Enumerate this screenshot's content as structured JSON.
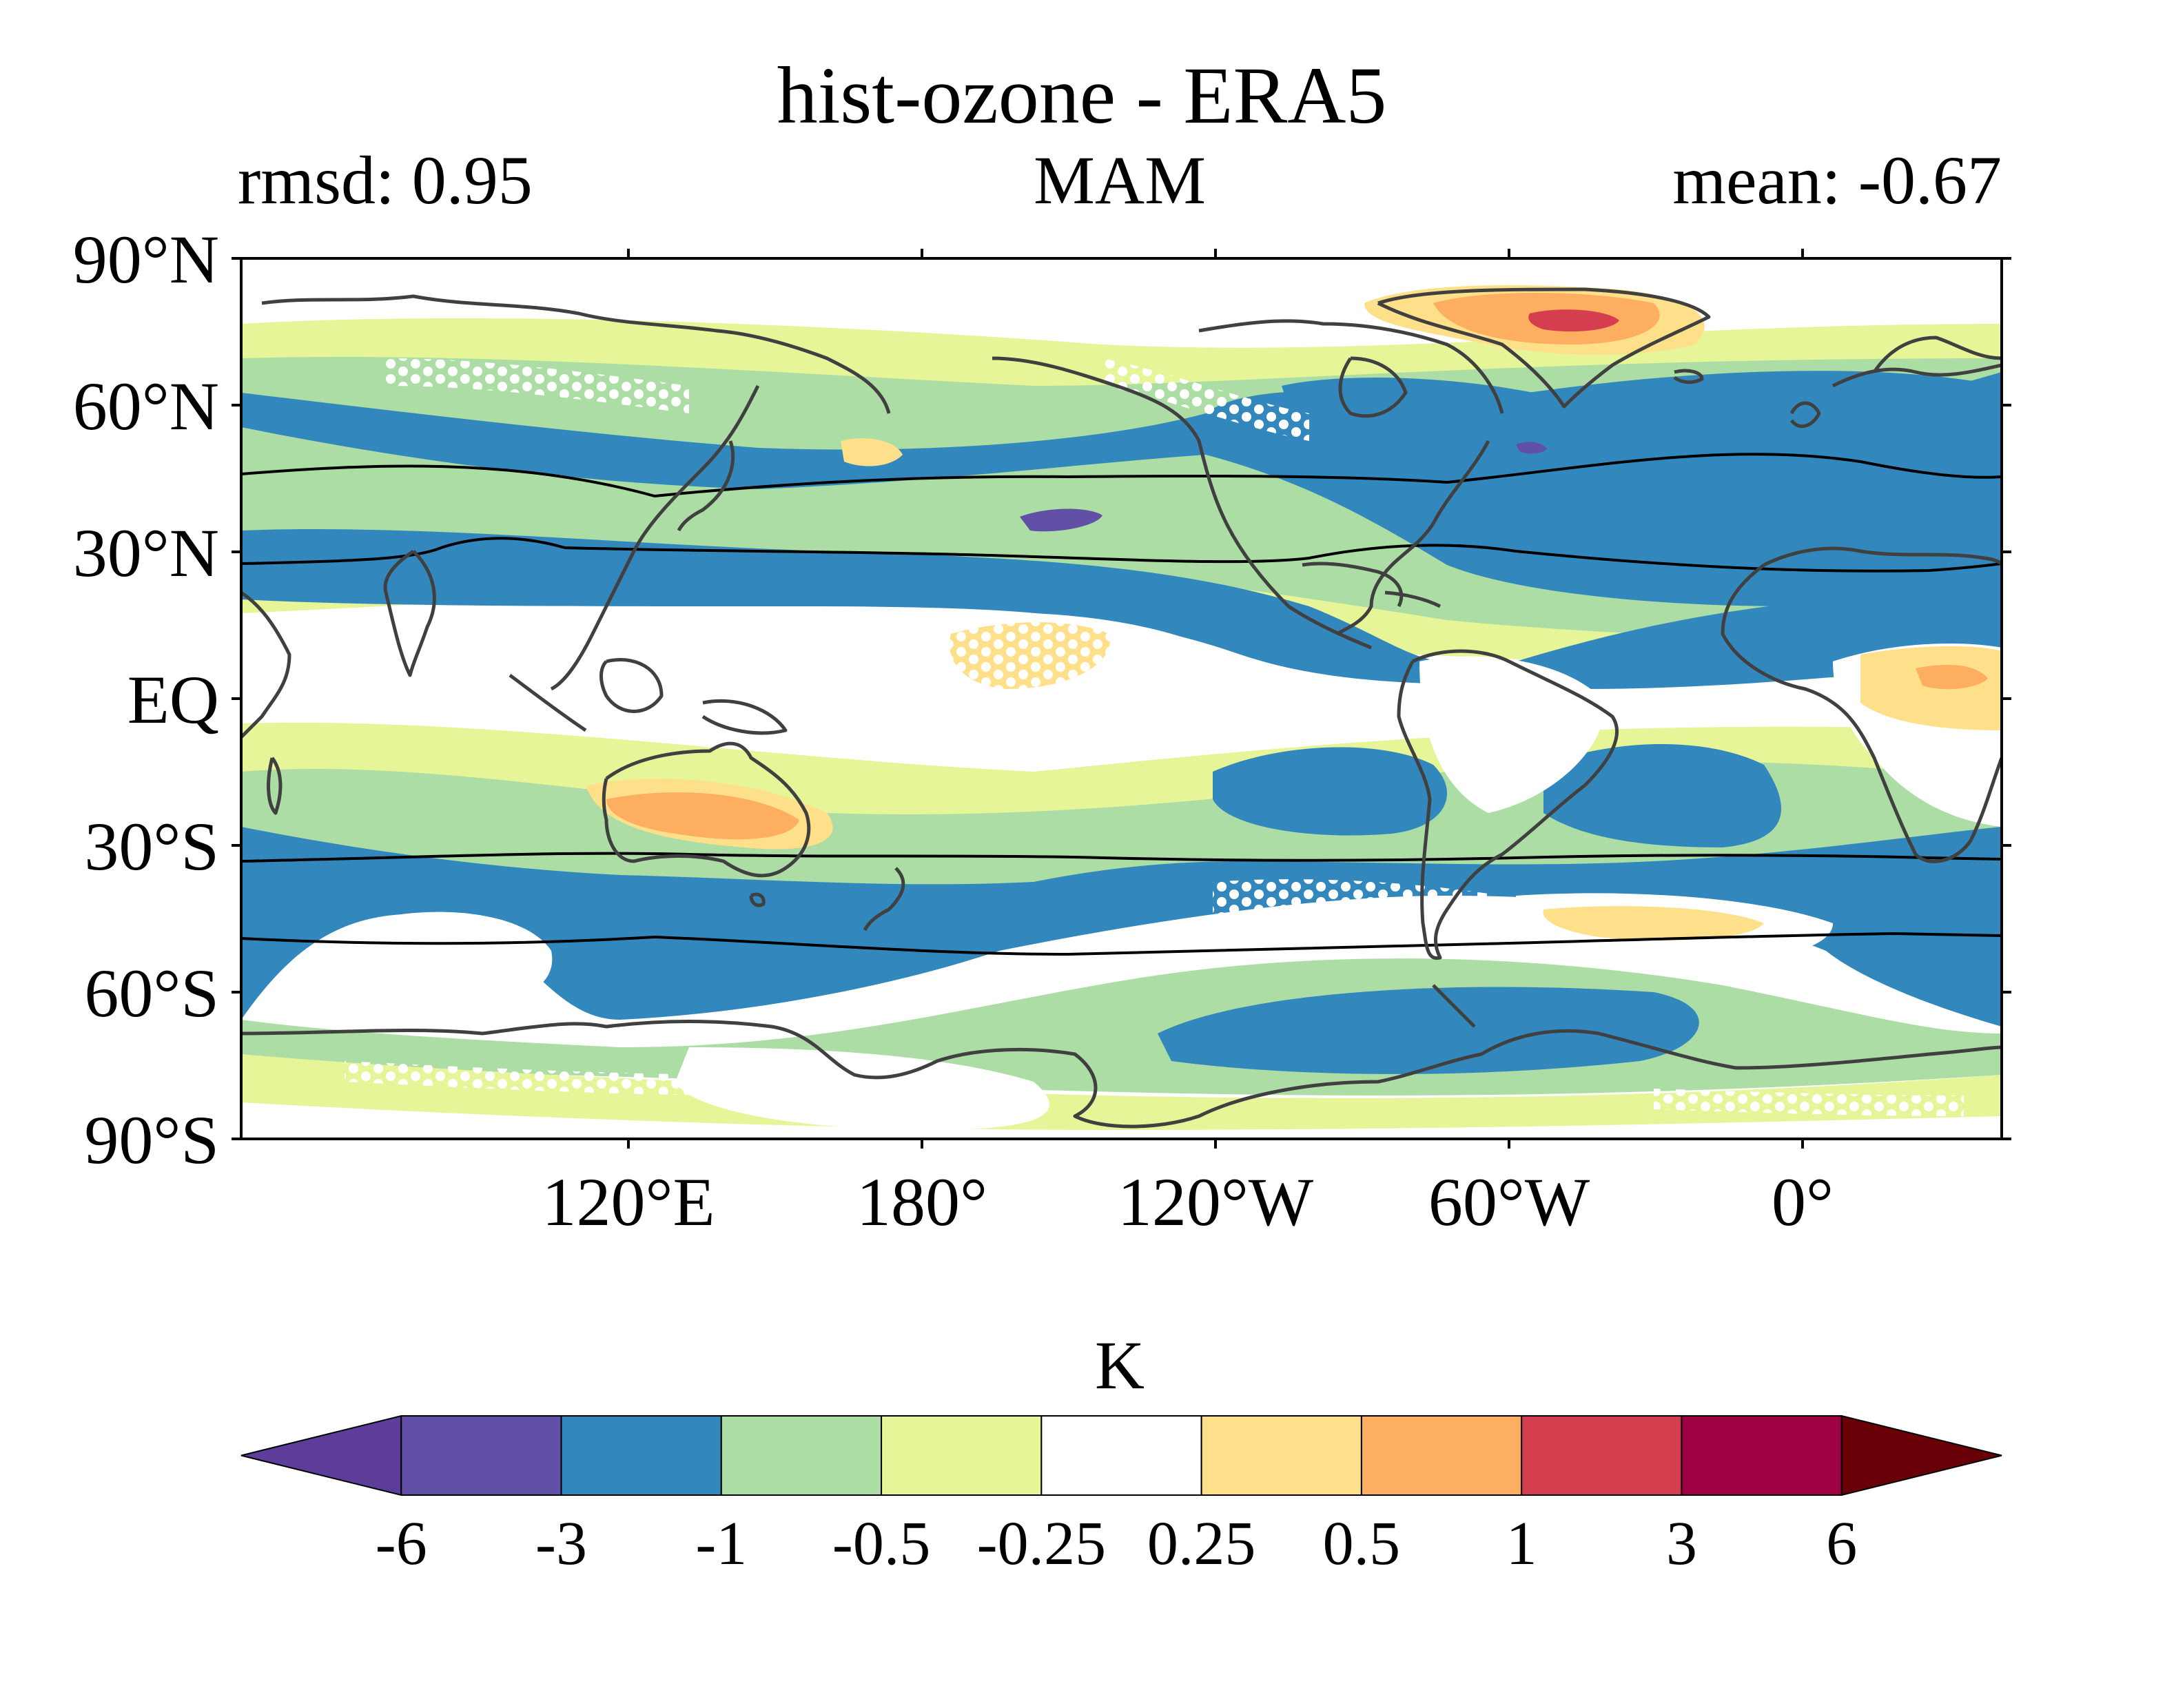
{
  "title": "hist-ozone - ERA5",
  "left_stat": "rmsd: 0.95",
  "center_label": "MAM",
  "right_stat": "mean: -0.67",
  "lat_ticks": [
    "90°N",
    "60°N",
    "30°N",
    "EQ",
    "30°S",
    "60°S",
    "90°S"
  ],
  "lon_ticks": [
    "120°E",
    "180°",
    "120°W",
    "60°W",
    "0°"
  ],
  "colorbar": {
    "label": "K",
    "tick_labels": [
      "-6",
      "-3",
      "-1",
      "-0.5",
      "-0.25",
      "0.25",
      "0.5",
      "1",
      "3",
      "6"
    ],
    "colors": [
      "#5e3c99",
      "#6150a6",
      "#3288bd",
      "#abdda4",
      "#e6f598",
      "#ffffff",
      "#fee08b",
      "#fdae61",
      "#d53e4f",
      "#9e0142",
      "#6a0007"
    ]
  },
  "colors": {
    "coastline": "#404040",
    "jet_lines": "#000000",
    "stipple": "#ffffff"
  }
}
